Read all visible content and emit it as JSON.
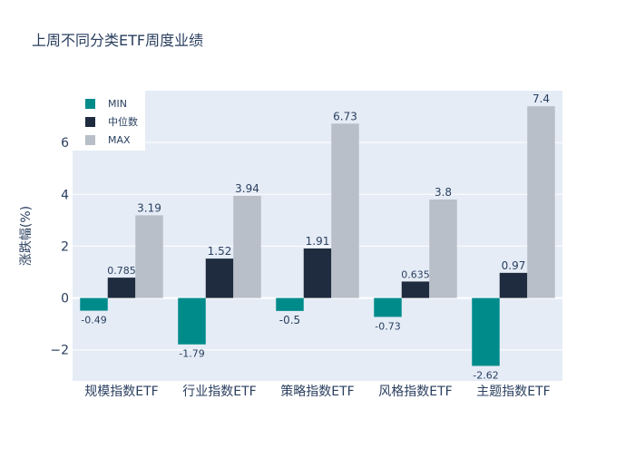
{
  "chart_data": {
    "type": "bar",
    "title": "上周不同分类ETF周度业绩",
    "xlabel": "",
    "ylabel": "涨跌幅(%)",
    "categories": [
      "规模指数ETF",
      "行业指数ETF",
      "策略指数ETF",
      "风格指数ETF",
      "主题指数ETF"
    ],
    "series": [
      {
        "name": "MIN",
        "color": "#008b8b",
        "values": [
          -0.49,
          -1.79,
          -0.5,
          -0.73,
          -2.62
        ],
        "labels": [
          "-0.49",
          "-1.79",
          "-0.5",
          "-0.73",
          "-2.62"
        ]
      },
      {
        "name": "中位数",
        "color": "#1f2b3e",
        "values": [
          0.785,
          1.52,
          1.91,
          0.635,
          0.97
        ],
        "labels": [
          "0.785",
          "1.52",
          "1.91",
          "0.635",
          "0.97"
        ]
      },
      {
        "name": "MAX",
        "color": "#b8bfc8",
        "values": [
          3.19,
          3.94,
          6.73,
          3.8,
          7.4
        ],
        "labels": [
          "3.19",
          "3.94",
          "6.73",
          "3.8",
          "7.4"
        ]
      }
    ],
    "ylim": [
      -3.2,
      8.0
    ],
    "yticks": [
      -2,
      0,
      2,
      4,
      6
    ],
    "ytick_labels": [
      "−2",
      "0",
      "2",
      "4",
      "6"
    ],
    "grid": true,
    "legend_position": "top-left",
    "plot_background": "#e5ecf6"
  }
}
